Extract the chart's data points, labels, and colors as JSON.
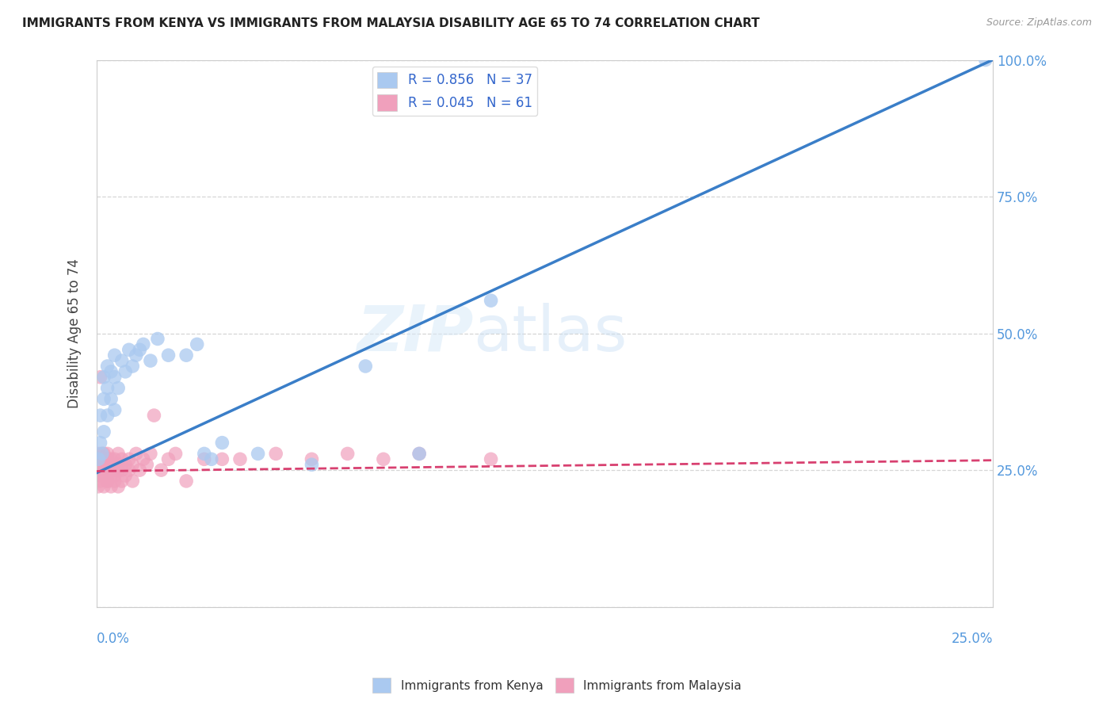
{
  "title": "IMMIGRANTS FROM KENYA VS IMMIGRANTS FROM MALAYSIA DISABILITY AGE 65 TO 74 CORRELATION CHART",
  "source": "Source: ZipAtlas.com",
  "ylabel": "Disability Age 65 to 74",
  "xlim": [
    0,
    0.25
  ],
  "ylim": [
    0,
    1.0
  ],
  "xticks": [
    0.0,
    0.05,
    0.1,
    0.15,
    0.2,
    0.25
  ],
  "yticks": [
    0.0,
    0.25,
    0.5,
    0.75,
    1.0
  ],
  "kenya": {
    "R": 0.856,
    "N": 37,
    "color": "#aac9f0",
    "line_color": "#3a7ec8",
    "label": "Immigrants from Kenya",
    "x": [
      0.0005,
      0.001,
      0.001,
      0.0015,
      0.002,
      0.002,
      0.002,
      0.003,
      0.003,
      0.003,
      0.004,
      0.004,
      0.005,
      0.005,
      0.005,
      0.006,
      0.007,
      0.008,
      0.009,
      0.01,
      0.011,
      0.012,
      0.013,
      0.015,
      0.017,
      0.02,
      0.025,
      0.028,
      0.03,
      0.032,
      0.035,
      0.045,
      0.06,
      0.075,
      0.09,
      0.11,
      0.248
    ],
    "y": [
      0.27,
      0.3,
      0.35,
      0.28,
      0.32,
      0.38,
      0.42,
      0.35,
      0.4,
      0.44,
      0.38,
      0.43,
      0.36,
      0.42,
      0.46,
      0.4,
      0.45,
      0.43,
      0.47,
      0.44,
      0.46,
      0.47,
      0.48,
      0.45,
      0.49,
      0.46,
      0.46,
      0.48,
      0.28,
      0.27,
      0.3,
      0.28,
      0.26,
      0.44,
      0.28,
      0.56,
      1.0
    ],
    "line_x0": 0.0,
    "line_y0": 0.245,
    "line_x1": 0.25,
    "line_y1": 1.0
  },
  "malaysia": {
    "R": 0.045,
    "N": 61,
    "color": "#f0a0bc",
    "line_color": "#d84070",
    "label": "Immigrants from Malaysia",
    "x": [
      0.0002,
      0.0004,
      0.0006,
      0.0008,
      0.001,
      0.001,
      0.001,
      0.001,
      0.001,
      0.0015,
      0.002,
      0.002,
      0.002,
      0.002,
      0.002,
      0.003,
      0.003,
      0.003,
      0.003,
      0.003,
      0.004,
      0.004,
      0.004,
      0.004,
      0.005,
      0.005,
      0.005,
      0.005,
      0.006,
      0.006,
      0.006,
      0.006,
      0.007,
      0.007,
      0.007,
      0.008,
      0.008,
      0.009,
      0.009,
      0.01,
      0.01,
      0.011,
      0.012,
      0.013,
      0.014,
      0.015,
      0.016,
      0.018,
      0.02,
      0.022,
      0.025,
      0.03,
      0.035,
      0.04,
      0.05,
      0.06,
      0.07,
      0.08,
      0.09,
      0.11,
      0.001
    ],
    "y": [
      0.26,
      0.22,
      0.28,
      0.24,
      0.25,
      0.27,
      0.23,
      0.26,
      0.24,
      0.28,
      0.24,
      0.26,
      0.22,
      0.28,
      0.25,
      0.23,
      0.27,
      0.25,
      0.28,
      0.23,
      0.24,
      0.26,
      0.22,
      0.27,
      0.25,
      0.23,
      0.27,
      0.24,
      0.26,
      0.22,
      0.28,
      0.25,
      0.23,
      0.27,
      0.25,
      0.26,
      0.24,
      0.27,
      0.25,
      0.26,
      0.23,
      0.28,
      0.25,
      0.27,
      0.26,
      0.28,
      0.35,
      0.25,
      0.27,
      0.28,
      0.23,
      0.27,
      0.27,
      0.27,
      0.28,
      0.27,
      0.28,
      0.27,
      0.28,
      0.27,
      0.42
    ],
    "line_x0": 0.0,
    "line_y0": 0.248,
    "line_x1": 0.25,
    "line_y1": 0.268
  },
  "watermark_zip": "ZIP",
  "watermark_atlas": "atlas",
  "background_color": "#ffffff"
}
